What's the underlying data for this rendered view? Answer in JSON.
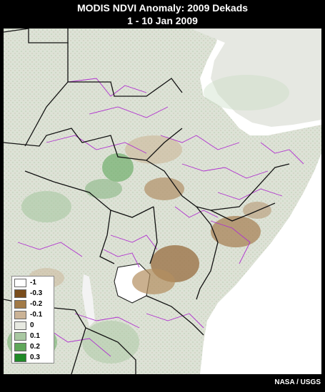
{
  "title": "MODIS NDVI Anomaly: 2009 Dekads",
  "subtitle": "1 - 10 Jan 2009",
  "credit": "NASA / USGS",
  "colors": {
    "water": "#ffffff",
    "land_neutral": "#dfe3d9",
    "boundary_country": "#111111",
    "boundary_admin": "#b030d0"
  },
  "legend": {
    "items": [
      {
        "label": "-1",
        "color": "#ffffff"
      },
      {
        "label": "-0.3",
        "color": "#7a4d1c"
      },
      {
        "label": "-0.2",
        "color": "#a27a47"
      },
      {
        "label": "-0.1",
        "color": "#cbb396"
      },
      {
        "label": "0",
        "color": "#e7e9e1"
      },
      {
        "label": "0.1",
        "color": "#a9c8a2"
      },
      {
        "label": "0.2",
        "color": "#5fa75a"
      },
      {
        "label": "0.3",
        "color": "#1f8a27"
      }
    ]
  }
}
